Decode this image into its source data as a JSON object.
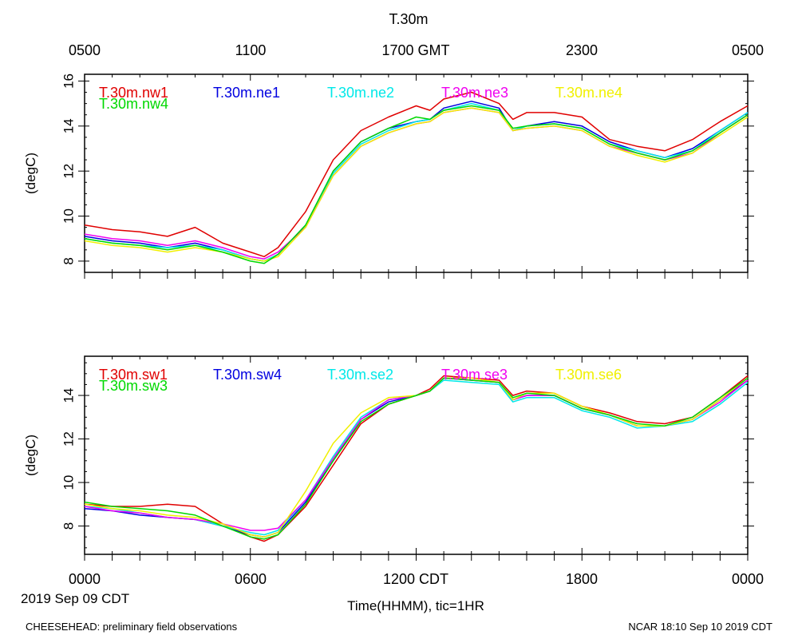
{
  "header": {
    "title": "T.30m",
    "top_time_labels": [
      "0500",
      "1100",
      "1700 GMT",
      "2300",
      "0500"
    ]
  },
  "footer": {
    "bottom_time_labels": [
      "0000",
      "0600",
      "1200 CDT",
      "1800",
      "0000"
    ],
    "date_label": "2019 Sep 09 CDT",
    "xlabel": "Time(HHMM), tic=1HR",
    "left_note": "CHEESEHEAD: preliminary field observations",
    "right_note": "NCAR 18:10 Sep 10 2019 CDT"
  },
  "colors": {
    "red": "#e00000",
    "blue": "#0000e0",
    "cyan": "#00e8e8",
    "magenta": "#f000f0",
    "yellow": "#f0f000",
    "green": "#00d800"
  },
  "chart_data": [
    {
      "type": "line",
      "title": "T.30m",
      "ylabel": "(degC)",
      "xlabel": "Time(HHMM), tic=1HR",
      "x_range_hours": [
        0,
        24
      ],
      "ylim": [
        7.5,
        16.3
      ],
      "yticks": [
        8,
        10,
        12,
        14,
        16
      ],
      "x": [
        0,
        1,
        2,
        3,
        4,
        5,
        6,
        6.5,
        7,
        8,
        9,
        10,
        11,
        12,
        12.5,
        13,
        14,
        15,
        15.5,
        16,
        17,
        18,
        19,
        20,
        21,
        22,
        23,
        24
      ],
      "series": [
        {
          "name": "T.30m.nw1",
          "color": "red",
          "values": [
            9.6,
            9.4,
            9.3,
            9.1,
            9.5,
            8.8,
            8.4,
            8.2,
            8.6,
            10.2,
            12.5,
            13.8,
            14.4,
            14.9,
            14.7,
            15.2,
            15.5,
            15.0,
            14.3,
            14.6,
            14.6,
            14.4,
            13.4,
            13.1,
            12.9,
            13.4,
            14.2,
            14.9
          ]
        },
        {
          "name": "T.30m.ne1",
          "color": "blue",
          "values": [
            9.1,
            8.9,
            8.8,
            8.6,
            8.8,
            8.5,
            8.1,
            8.0,
            8.3,
            9.6,
            12.0,
            13.3,
            13.9,
            14.2,
            14.3,
            14.8,
            15.1,
            14.8,
            13.8,
            14.0,
            14.2,
            14.0,
            13.3,
            12.9,
            12.6,
            13.0,
            13.8,
            14.6
          ]
        },
        {
          "name": "T.30m.ne2",
          "color": "cyan",
          "values": [
            9.0,
            8.8,
            8.7,
            8.6,
            8.7,
            8.5,
            8.1,
            8.0,
            8.3,
            9.6,
            11.9,
            13.2,
            13.8,
            14.2,
            14.3,
            14.7,
            15.0,
            14.7,
            13.8,
            14.0,
            14.1,
            13.9,
            13.2,
            12.9,
            12.6,
            12.9,
            13.8,
            14.6
          ]
        },
        {
          "name": "T.30m.ne3",
          "color": "magenta",
          "values": [
            9.2,
            9.0,
            8.9,
            8.7,
            8.9,
            8.6,
            8.2,
            8.1,
            8.4,
            9.5,
            11.8,
            13.1,
            13.7,
            14.1,
            14.2,
            14.6,
            14.8,
            14.6,
            13.8,
            13.9,
            14.0,
            13.8,
            13.1,
            12.8,
            12.5,
            12.8,
            13.7,
            14.5
          ]
        },
        {
          "name": "T.30m.ne4",
          "color": "yellow",
          "values": [
            8.9,
            8.7,
            8.6,
            8.4,
            8.6,
            8.4,
            8.1,
            8.0,
            8.2,
            9.5,
            11.8,
            13.1,
            13.7,
            14.1,
            14.2,
            14.6,
            14.8,
            14.6,
            13.8,
            13.9,
            14.0,
            13.8,
            13.1,
            12.7,
            12.4,
            12.8,
            13.6,
            14.4
          ]
        },
        {
          "name": "T.30m.nw4",
          "color": "green",
          "values": [
            9.0,
            8.8,
            8.7,
            8.5,
            8.7,
            8.4,
            8.0,
            7.9,
            8.3,
            9.6,
            12.0,
            13.3,
            13.9,
            14.4,
            14.3,
            14.7,
            14.9,
            14.7,
            13.9,
            14.0,
            14.1,
            13.9,
            13.2,
            12.8,
            12.5,
            12.9,
            13.7,
            14.5
          ]
        }
      ]
    },
    {
      "type": "line",
      "ylabel": "(degC)",
      "xlabel": "Time(HHMM), tic=1HR",
      "x_range_hours": [
        0,
        24
      ],
      "ylim": [
        6.7,
        15.8
      ],
      "yticks": [
        8,
        10,
        12,
        14
      ],
      "x": [
        0,
        1,
        2,
        3,
        4,
        5,
        6,
        6.5,
        7,
        8,
        9,
        10,
        11,
        12,
        12.5,
        13,
        14,
        15,
        15.5,
        16,
        17,
        18,
        19,
        20,
        21,
        22,
        23,
        24
      ],
      "series": [
        {
          "name": "T.30m.sw1",
          "color": "red",
          "values": [
            9.0,
            8.9,
            8.9,
            9.0,
            8.9,
            8.1,
            7.5,
            7.3,
            7.6,
            8.9,
            10.8,
            12.7,
            13.6,
            14.0,
            14.3,
            14.9,
            14.8,
            14.7,
            14.0,
            14.2,
            14.1,
            13.5,
            13.2,
            12.8,
            12.7,
            13.0,
            13.9,
            14.9
          ]
        },
        {
          "name": "T.30m.sw4",
          "color": "blue",
          "values": [
            8.8,
            8.7,
            8.5,
            8.4,
            8.3,
            8.0,
            7.6,
            7.5,
            7.7,
            9.1,
            11.0,
            12.9,
            13.7,
            14.0,
            14.2,
            14.8,
            14.7,
            14.6,
            13.8,
            14.0,
            14.0,
            13.4,
            13.1,
            12.6,
            12.6,
            12.9,
            13.8,
            14.7
          ]
        },
        {
          "name": "T.30m.se2",
          "color": "cyan",
          "values": [
            8.9,
            8.8,
            8.6,
            8.4,
            8.3,
            8.0,
            7.7,
            7.6,
            7.8,
            9.2,
            11.2,
            13.0,
            13.8,
            14.0,
            14.2,
            14.7,
            14.6,
            14.5,
            13.7,
            13.9,
            13.9,
            13.3,
            13.0,
            12.5,
            12.6,
            12.8,
            13.6,
            14.6
          ]
        },
        {
          "name": "T.30m.se3",
          "color": "magenta",
          "values": [
            8.9,
            8.7,
            8.6,
            8.4,
            8.3,
            8.1,
            7.8,
            7.8,
            7.9,
            9.2,
            11.1,
            12.9,
            13.8,
            14.0,
            14.2,
            14.8,
            14.7,
            14.6,
            13.8,
            14.0,
            14.0,
            13.4,
            13.1,
            12.6,
            12.6,
            12.9,
            13.7,
            14.7
          ]
        },
        {
          "name": "T.30m.se6",
          "color": "yellow",
          "values": [
            9.0,
            8.8,
            8.7,
            8.5,
            8.4,
            8.1,
            7.6,
            7.5,
            7.7,
            9.6,
            11.8,
            13.2,
            13.9,
            14.0,
            14.2,
            14.8,
            14.8,
            14.6,
            13.8,
            14.1,
            14.1,
            13.5,
            13.1,
            12.6,
            12.6,
            12.9,
            13.8,
            14.8
          ]
        },
        {
          "name": "T.30m.sw3",
          "color": "green",
          "values": [
            9.1,
            8.9,
            8.8,
            8.7,
            8.5,
            8.0,
            7.5,
            7.4,
            7.6,
            9.0,
            11.0,
            12.8,
            13.6,
            14.0,
            14.2,
            14.8,
            14.7,
            14.6,
            13.9,
            14.1,
            14.0,
            13.4,
            13.1,
            12.7,
            12.6,
            13.0,
            13.9,
            14.8
          ]
        }
      ]
    }
  ]
}
